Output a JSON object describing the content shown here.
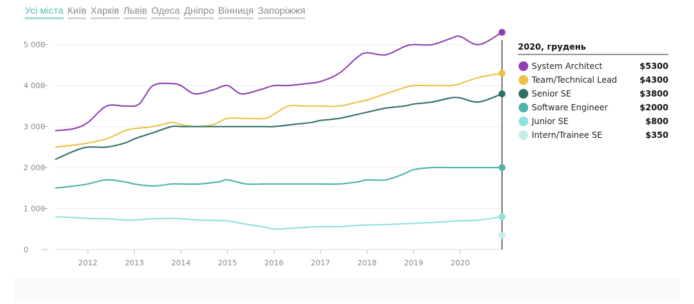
{
  "tabs": [
    {
      "label": "Усі міста",
      "active": true
    },
    {
      "label": "Київ",
      "active": false
    },
    {
      "label": "Харків",
      "active": false
    },
    {
      "label": "Львів",
      "active": false
    },
    {
      "label": "Одеса",
      "active": false
    },
    {
      "label": "Дніпро",
      "active": false
    },
    {
      "label": "Вінниця",
      "active": false
    },
    {
      "label": "Запоріжжя",
      "active": false
    }
  ],
  "chart_data": {
    "type": "line",
    "legend_title": "2020, грудень",
    "legend_position": "right",
    "xlim": [
      2011.3,
      2020.9
    ],
    "ylim": [
      0,
      5500
    ],
    "x_ticks": [
      2012,
      2013,
      2014,
      2015,
      2016,
      2017,
      2018,
      2019,
      2020
    ],
    "y_ticks": [
      0,
      1000,
      2000,
      3000,
      4000,
      5000
    ],
    "y_tick_labels": [
      "0",
      "1 000",
      "2 000",
      "3 000",
      "4 000",
      "5 000"
    ],
    "grid": "horizontal",
    "series": [
      {
        "name": "System Architect",
        "color": "#8e3fb3",
        "legend_value": "$5300",
        "x": [
          2011.3,
          2011.7,
          2012.0,
          2012.4,
          2012.8,
          2013.1,
          2013.4,
          2013.8,
          2014.0,
          2014.3,
          2014.7,
          2015.0,
          2015.3,
          2015.7,
          2016.0,
          2016.3,
          2016.7,
          2017.0,
          2017.4,
          2017.8,
          2018.0,
          2018.4,
          2018.8,
          2019.0,
          2019.4,
          2019.8,
          2020.0,
          2020.4,
          2020.9
        ],
        "y": [
          2900,
          2950,
          3100,
          3500,
          3500,
          3550,
          4000,
          4050,
          4000,
          3800,
          3900,
          4000,
          3800,
          3900,
          4000,
          4000,
          4050,
          4100,
          4300,
          4700,
          4800,
          4750,
          4950,
          5000,
          5000,
          5150,
          5200,
          5000,
          5300
        ]
      },
      {
        "name": "Team/Technical Lead",
        "color": "#edc046",
        "legend_value": "$4300",
        "x": [
          2011.3,
          2011.7,
          2012.0,
          2012.4,
          2012.8,
          2013.0,
          2013.4,
          2013.8,
          2014.0,
          2014.3,
          2014.7,
          2015.0,
          2015.4,
          2015.8,
          2016.0,
          2016.3,
          2016.7,
          2017.0,
          2017.4,
          2017.8,
          2018.0,
          2018.4,
          2018.8,
          2019.0,
          2019.4,
          2019.8,
          2020.0,
          2020.4,
          2020.9
        ],
        "y": [
          2500,
          2550,
          2600,
          2700,
          2900,
          2950,
          3000,
          3100,
          3050,
          3000,
          3050,
          3200,
          3200,
          3200,
          3300,
          3500,
          3500,
          3500,
          3500,
          3600,
          3650,
          3800,
          3950,
          4000,
          4000,
          4000,
          4050,
          4200,
          4300
        ]
      },
      {
        "name": "Senior SE",
        "color": "#2d7068",
        "legend_value": "$3800",
        "x": [
          2011.3,
          2011.7,
          2012.0,
          2012.4,
          2012.8,
          2013.0,
          2013.4,
          2013.8,
          2014.0,
          2014.3,
          2014.7,
          2015.0,
          2015.4,
          2015.8,
          2016.0,
          2016.4,
          2016.8,
          2017.0,
          2017.4,
          2017.8,
          2018.0,
          2018.4,
          2018.8,
          2019.0,
          2019.4,
          2019.8,
          2020.0,
          2020.4,
          2020.9
        ],
        "y": [
          2200,
          2400,
          2500,
          2500,
          2600,
          2700,
          2850,
          3000,
          3000,
          3000,
          3000,
          3000,
          3000,
          3000,
          3000,
          3050,
          3100,
          3150,
          3200,
          3300,
          3350,
          3450,
          3500,
          3550,
          3600,
          3700,
          3700,
          3600,
          3800
        ]
      },
      {
        "name": "Software Engineer",
        "color": "#4fb3a9",
        "legend_value": "$2000",
        "x": [
          2011.3,
          2011.7,
          2012.0,
          2012.4,
          2012.8,
          2013.0,
          2013.4,
          2013.8,
          2014.0,
          2014.4,
          2014.8,
          2015.0,
          2015.4,
          2015.8,
          2016.0,
          2016.4,
          2016.8,
          2017.0,
          2017.4,
          2017.8,
          2018.0,
          2018.4,
          2018.8,
          2019.0,
          2019.4,
          2019.8,
          2020.0,
          2020.4,
          2020.9
        ],
        "y": [
          1500,
          1550,
          1600,
          1700,
          1650,
          1600,
          1550,
          1600,
          1600,
          1600,
          1650,
          1700,
          1600,
          1600,
          1600,
          1600,
          1600,
          1600,
          1600,
          1650,
          1700,
          1700,
          1850,
          1950,
          2000,
          2000,
          2000,
          2000,
          2000
        ]
      },
      {
        "name": "Junior SE",
        "color": "#8ee3dc",
        "legend_value": "$800",
        "x": [
          2011.3,
          2011.7,
          2012.0,
          2012.4,
          2012.8,
          2013.0,
          2013.4,
          2013.8,
          2014.0,
          2014.4,
          2014.8,
          2015.0,
          2015.4,
          2015.8,
          2016.0,
          2016.4,
          2016.8,
          2017.0,
          2017.4,
          2017.8,
          2018.0,
          2018.4,
          2018.8,
          2019.0,
          2019.4,
          2019.8,
          2020.0,
          2020.4,
          2020.9
        ],
        "y": [
          800,
          780,
          760,
          750,
          720,
          720,
          750,
          760,
          750,
          720,
          710,
          700,
          620,
          550,
          500,
          520,
          550,
          560,
          560,
          590,
          600,
          610,
          630,
          640,
          660,
          690,
          700,
          720,
          800
        ]
      },
      {
        "name": "Intern/Trainee SE",
        "color": "#c8ece9",
        "legend_value": "$350",
        "x": [
          2020.9
        ],
        "y": [
          350
        ]
      }
    ]
  }
}
